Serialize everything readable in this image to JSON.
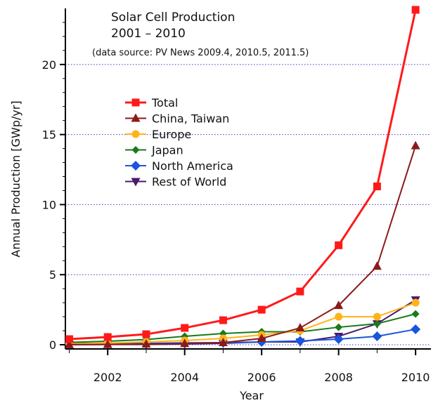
{
  "chart_data": {
    "type": "line",
    "title": "Solar Cell Production",
    "subtitle": "2001 – 2010",
    "source": "(data source: PV News 2009.4, 2010.5, 2011.5)",
    "xlabel": "Year",
    "ylabel": "Annual Production [GWp/yr]",
    "xlim": [
      2000.9,
      2010.4
    ],
    "ylim": [
      -0.3,
      24
    ],
    "x": [
      2001,
      2002,
      2003,
      2004,
      2005,
      2006,
      2007,
      2008,
      2009,
      2010
    ],
    "xticks": [
      2002,
      2004,
      2006,
      2008,
      2010
    ],
    "xtick_labels": [
      "2002",
      "2004",
      "2006",
      "2008",
      "2010"
    ],
    "yticks": [
      0,
      5,
      10,
      15,
      20
    ],
    "ytick_labels": [
      "0",
      "5",
      "10",
      "15",
      "20"
    ],
    "grid": "horizontal-dotted",
    "legend_position": "upper-left",
    "series": [
      {
        "name": "Total",
        "color": "#ff1a1a",
        "marker": "square",
        "values": [
          0.4,
          0.55,
          0.75,
          1.2,
          1.75,
          2.5,
          3.8,
          7.1,
          11.3,
          23.9
        ]
      },
      {
        "name": "China, Taiwan",
        "color": "#8b1a1a",
        "marker": "triangle-up",
        "values": [
          0.01,
          0.02,
          0.05,
          0.08,
          0.15,
          0.45,
          1.2,
          2.8,
          5.6,
          14.2
        ]
      },
      {
        "name": "Europe",
        "color": "#ffb31a",
        "marker": "circle",
        "values": [
          0.07,
          0.12,
          0.2,
          0.3,
          0.45,
          0.7,
          1.0,
          2.0,
          2.0,
          3.0
        ]
      },
      {
        "name": "Japan",
        "color": "#1a7a1a",
        "marker": "diamond",
        "values": [
          0.17,
          0.25,
          0.37,
          0.6,
          0.8,
          0.93,
          0.92,
          1.25,
          1.5,
          2.2
        ]
      },
      {
        "name": "North America",
        "color": "#1a55dd",
        "marker": "diamond-large",
        "values": [
          0.1,
          0.11,
          0.1,
          0.14,
          0.15,
          0.2,
          0.27,
          0.4,
          0.6,
          1.1
        ]
      },
      {
        "name": "Rest of World",
        "color": "#4a1a6b",
        "marker": "triangle-down",
        "values": [
          0.01,
          0.02,
          0.02,
          0.05,
          0.1,
          0.2,
          0.2,
          0.6,
          1.5,
          3.2
        ]
      }
    ]
  }
}
